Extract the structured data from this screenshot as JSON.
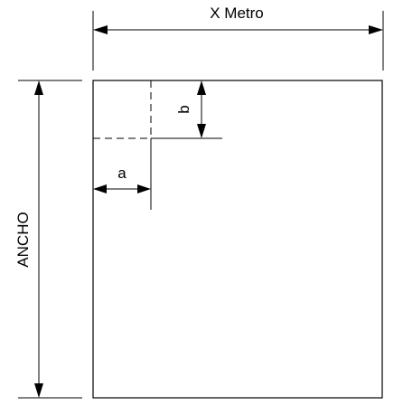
{
  "diagram": {
    "labels": {
      "width_label": "X Metro",
      "height_label": "ANCHO",
      "dimension_a": "a",
      "dimension_b": "b"
    },
    "colors": {
      "line": "#000000",
      "background": "#ffffff"
    }
  }
}
